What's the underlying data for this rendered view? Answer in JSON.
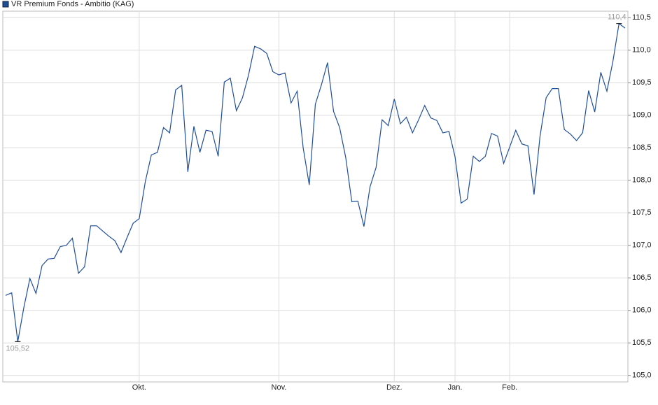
{
  "chart_data": {
    "type": "line",
    "series": [
      {
        "name": "VR Premium Fonds - Ambitio (KAG)",
        "color": "#1f4e99",
        "values": [
          106.23,
          106.27,
          105.52,
          106.04,
          106.49,
          106.26,
          106.69,
          106.79,
          106.8,
          106.98,
          107.0,
          107.11,
          106.57,
          106.67,
          107.3,
          107.3,
          107.22,
          107.14,
          107.07,
          106.89,
          107.12,
          107.34,
          107.41,
          107.98,
          108.39,
          108.43,
          108.81,
          108.73,
          109.39,
          109.46,
          108.13,
          108.83,
          108.43,
          108.77,
          108.75,
          108.37,
          109.51,
          109.57,
          109.07,
          109.27,
          109.62,
          110.06,
          110.02,
          109.95,
          109.67,
          109.62,
          109.65,
          109.19,
          109.37,
          108.5,
          107.93,
          109.17,
          109.47,
          109.81,
          109.06,
          108.81,
          108.35,
          107.67,
          107.68,
          107.29,
          107.9,
          108.2,
          108.93,
          108.84,
          109.25,
          108.87,
          108.97,
          108.73,
          108.93,
          109.15,
          108.96,
          108.92,
          108.73,
          108.75,
          108.36,
          107.65,
          107.71,
          108.37,
          108.29,
          108.37,
          108.72,
          108.68,
          108.26,
          108.51,
          108.77,
          108.56,
          108.53,
          107.78,
          108.68,
          109.27,
          109.41,
          109.41,
          108.78,
          108.71,
          108.61,
          108.73,
          109.38,
          109.05,
          109.66,
          109.37,
          109.83,
          110.41,
          110.34
        ]
      }
    ],
    "categories": [
      null,
      null,
      null,
      null,
      null,
      null,
      null,
      null,
      null,
      null,
      null,
      null,
      null,
      null,
      null,
      null,
      null,
      null,
      null,
      null,
      null,
      null,
      "Okt.",
      null,
      null,
      null,
      null,
      null,
      null,
      null,
      null,
      null,
      null,
      null,
      null,
      null,
      null,
      null,
      null,
      null,
      null,
      null,
      null,
      null,
      null,
      "Nov.",
      null,
      null,
      null,
      null,
      null,
      null,
      null,
      null,
      null,
      null,
      null,
      null,
      null,
      null,
      null,
      null,
      null,
      null,
      "Dez.",
      null,
      null,
      null,
      null,
      null,
      null,
      null,
      null,
      null,
      "Jan.",
      null,
      null,
      null,
      null,
      null,
      null,
      null,
      null,
      "Feb.",
      null,
      null,
      null,
      null,
      null,
      null,
      null,
      null,
      null,
      null,
      null,
      null,
      null,
      null,
      null,
      null,
      null,
      null,
      null
    ],
    "min_label": "105,52",
    "max_label": "110,4",
    "ylim": [
      104.9,
      110.6
    ],
    "yticks": [
      {
        "value": 105,
        "label": "105,0"
      },
      {
        "value": 105.5,
        "label": "105,5"
      },
      {
        "value": 106,
        "label": "106,0"
      },
      {
        "value": 106.5,
        "label": "106,5"
      },
      {
        "value": 107,
        "label": "107,0"
      },
      {
        "value": 107.5,
        "label": "107,5"
      },
      {
        "value": 108,
        "label": "108,0"
      },
      {
        "value": 108.5,
        "label": "108,5"
      },
      {
        "value": 109,
        "label": "109,0"
      },
      {
        "value": 109.5,
        "label": "109,5"
      },
      {
        "value": 110,
        "label": "110,0"
      },
      {
        "value": 110.5,
        "label": "110,5"
      }
    ],
    "grid": true
  }
}
